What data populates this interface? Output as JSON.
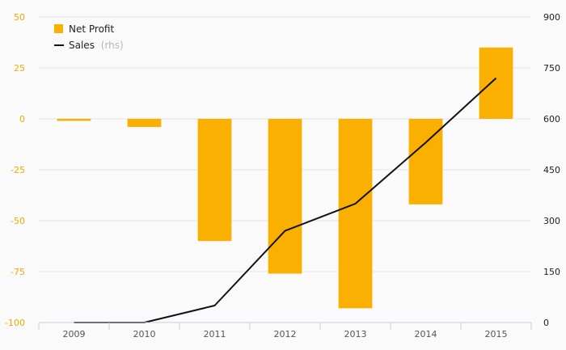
{
  "chart_data": {
    "type": "bar+line",
    "categories": [
      "2009",
      "2010",
      "2011",
      "2012",
      "2013",
      "2014",
      "2015"
    ],
    "series": [
      {
        "name": "Net Profit",
        "kind": "bar",
        "axis": "left",
        "color": "#f9b000",
        "values": [
          -1,
          -4,
          -60,
          -76,
          -93,
          -42,
          35
        ]
      },
      {
        "name": "Sales",
        "name_suffix": "(rhs)",
        "kind": "line",
        "axis": "right",
        "color": "#111111",
        "values": [
          0,
          0,
          50,
          270,
          350,
          530,
          720
        ]
      }
    ],
    "ylim_left": [
      -100,
      50
    ],
    "yticks_left": [
      "50",
      "25",
      "0",
      "-25",
      "-50",
      "-75",
      "-100"
    ],
    "ylim_right": [
      0,
      900
    ],
    "yticks_right": [
      "900",
      "750",
      "600",
      "450",
      "300",
      "150",
      "0"
    ],
    "left_axis_color": "#f5a800",
    "grid": true,
    "legend_position": "top-left"
  }
}
